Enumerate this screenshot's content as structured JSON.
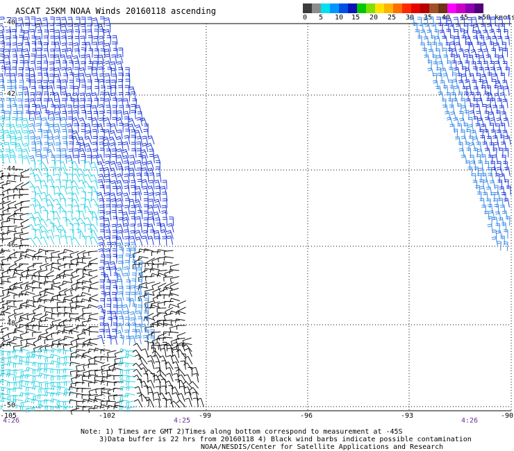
{
  "title": "ASCAT 25KM NOAA Winds 20160118 ascending",
  "colorbar": {
    "colors": [
      "#3c3c3c",
      "#8c8c8c",
      "#00e0f0",
      "#0096ff",
      "#0050e6",
      "#0a14b4",
      "#00c800",
      "#80e000",
      "#ffe000",
      "#ffb400",
      "#ff6e00",
      "#ff2800",
      "#e60000",
      "#b40000",
      "#a05028",
      "#6e3214",
      "#ff00ff",
      "#c800c8",
      "#8c00b4",
      "#50007a"
    ],
    "labels": [
      "0",
      "5",
      "10",
      "15",
      "20",
      "25",
      "30",
      "35",
      "40",
      "45",
      ">50 knots"
    ]
  },
  "map": {
    "lat_labels": [
      "-40",
      "-42",
      "-44",
      "-46",
      "-48",
      "-50"
    ],
    "lon_labels": [
      "-105",
      "-102",
      "-99",
      "-96",
      "-93",
      "-90"
    ],
    "time_labels": [
      "4:26",
      "4:25",
      "4:26"
    ],
    "lat_range": [
      -50,
      -40
    ],
    "lon_range": [
      -105,
      -90
    ],
    "grid": "dotted"
  },
  "notes": [
    "Note: 1) Times are GMT 2)Times along bottom correspond to measurement at -45S",
    "3)Data buffer is 22 hrs from 20160118 4) Black wind barbs indicate possible contamination",
    "NOAA/NESDIS/Center for Satellite Applications and Research"
  ]
}
